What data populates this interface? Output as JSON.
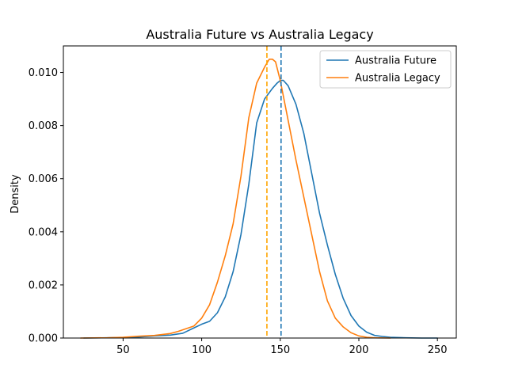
{
  "chart_data": {
    "type": "line",
    "title": "Australia Future vs Australia Legacy",
    "xlabel": "",
    "ylabel": "Density",
    "xlim": [
      12,
      262
    ],
    "ylim": [
      0,
      0.011
    ],
    "xticks": [
      50,
      100,
      150,
      200,
      250
    ],
    "yticks": [
      0.0,
      0.002,
      0.004,
      0.006,
      0.008,
      0.01
    ],
    "ytick_labels": [
      "0.000",
      "0.002",
      "0.004",
      "0.006",
      "0.008",
      "0.010"
    ],
    "grid": false,
    "legend_position": "top-right",
    "series": [
      {
        "name": "Australia Future",
        "color": "#1f77b4",
        "x": [
          25,
          40,
          50,
          60,
          70,
          80,
          88,
          95,
          100,
          105,
          110,
          115,
          120,
          125,
          130,
          135,
          140,
          145,
          148,
          150,
          152,
          155,
          160,
          165,
          170,
          175,
          180,
          185,
          190,
          195,
          200,
          205,
          210,
          215,
          220,
          230,
          240,
          250
        ],
        "y": [
          0.0,
          1e-05,
          2e-05,
          4e-05,
          8e-05,
          0.00011,
          0.00018,
          0.00038,
          0.00052,
          0.00063,
          0.00095,
          0.00155,
          0.0025,
          0.0039,
          0.0058,
          0.0081,
          0.009,
          0.0094,
          0.0096,
          0.0097,
          0.0097,
          0.0095,
          0.0088,
          0.0077,
          0.0062,
          0.0047,
          0.0035,
          0.0024,
          0.0015,
          0.00085,
          0.00045,
          0.00022,
          0.0001,
          6e-05,
          3e-05,
          1e-05,
          0.0,
          0.0
        ]
      },
      {
        "name": "Australia Legacy",
        "color": "#ff7f0e",
        "x": [
          23,
          40,
          50,
          60,
          70,
          80,
          85,
          90,
          95,
          100,
          105,
          110,
          115,
          120,
          125,
          130,
          135,
          140,
          143,
          145,
          147,
          150,
          155,
          160,
          165,
          170,
          175,
          180,
          185,
          190,
          195,
          200,
          205,
          210,
          220
        ],
        "y": [
          0.0,
          1e-05,
          3e-05,
          7e-05,
          0.0001,
          0.00017,
          0.00025,
          0.00035,
          0.00045,
          0.00075,
          0.00125,
          0.0021,
          0.0031,
          0.0043,
          0.0061,
          0.0083,
          0.0096,
          0.0102,
          0.0105,
          0.0105,
          0.0104,
          0.0097,
          0.0082,
          0.0067,
          0.0053,
          0.0039,
          0.0025,
          0.0014,
          0.00075,
          0.00042,
          0.0002,
          8e-05,
          3e-05,
          1e-05,
          0.0
        ]
      }
    ],
    "vlines": [
      {
        "x": 141.5,
        "color": "#ffa500",
        "style": "dashed"
      },
      {
        "x": 150.5,
        "color": "#1f77b4",
        "style": "dashed"
      }
    ]
  }
}
